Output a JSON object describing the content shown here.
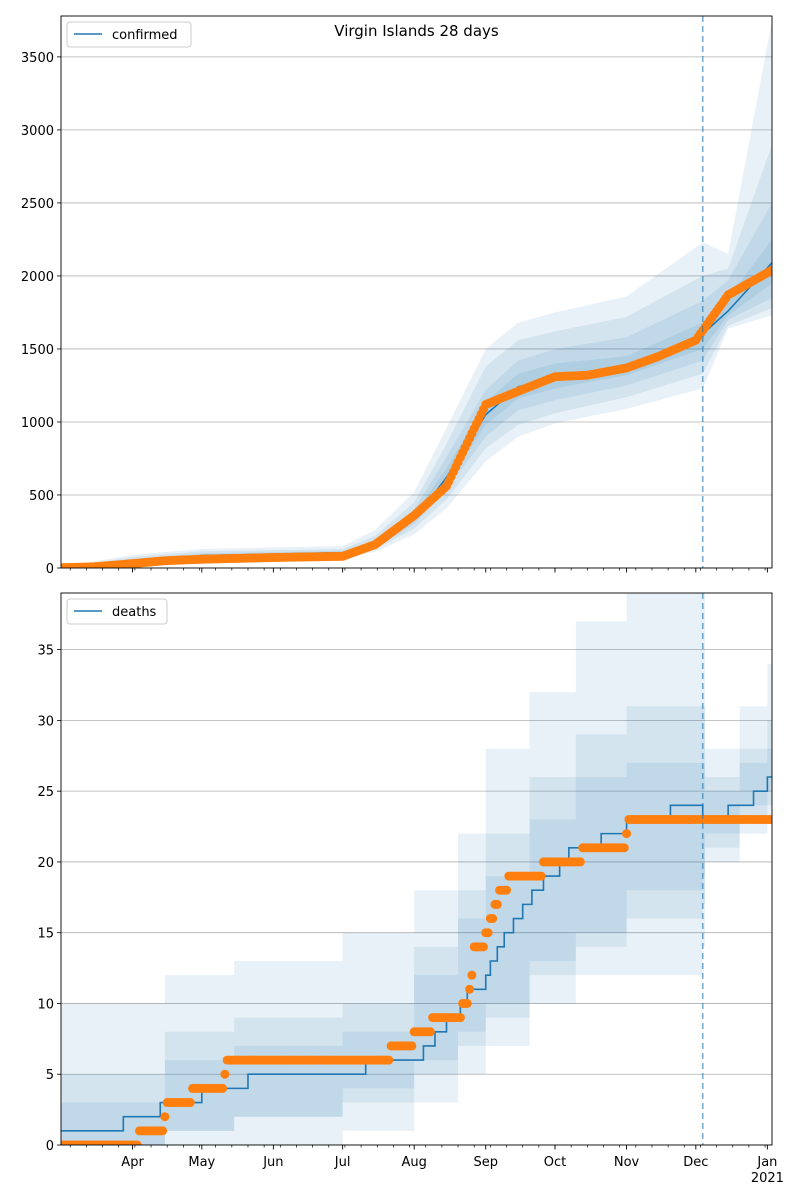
{
  "chart_data": [
    {
      "type": "line",
      "title": "Virgin Islands 28 days",
      "legend": {
        "entries": [
          "confirmed"
        ],
        "placement": "top-left"
      },
      "grid": "y",
      "ylim": [
        0,
        3780
      ],
      "yticks": [
        0,
        500,
        1000,
        1500,
        2000,
        2500,
        3000,
        3500
      ],
      "xlim": [
        "2020-03-01",
        "2021-01-03"
      ],
      "forecast_start": "2020-12-04",
      "colors": {
        "line": "#1f77b4",
        "observed": "#ff7f0e",
        "band": "#1f77b4"
      },
      "series": [
        {
          "name": "confirmed",
          "kind": "model",
          "points": [
            [
              "2020-03-01",
              2
            ],
            [
              "2020-03-15",
              8
            ],
            [
              "2020-04-01",
              45
            ],
            [
              "2020-04-15",
              65
            ],
            [
              "2020-05-01",
              85
            ],
            [
              "2020-06-01",
              95
            ],
            [
              "2020-07-01",
              105
            ],
            [
              "2020-07-15",
              150
            ],
            [
              "2020-08-01",
              330
            ],
            [
              "2020-08-15",
              620
            ],
            [
              "2020-09-01",
              1050
            ],
            [
              "2020-09-15",
              1240
            ],
            [
              "2020-10-01",
              1310
            ],
            [
              "2020-10-15",
              1340
            ],
            [
              "2020-11-01",
              1380
            ],
            [
              "2020-11-15",
              1450
            ],
            [
              "2020-12-01",
              1560
            ],
            [
              "2020-12-15",
              1760
            ],
            [
              "2021-01-03",
              2090
            ]
          ]
        },
        {
          "name": "",
          "kind": "observed",
          "points": [
            [
              "2020-03-01",
              2
            ],
            [
              "2020-03-15",
              8
            ],
            [
              "2020-04-01",
              30
            ],
            [
              "2020-04-15",
              50
            ],
            [
              "2020-05-01",
              60
            ],
            [
              "2020-06-01",
              72
            ],
            [
              "2020-07-01",
              80
            ],
            [
              "2020-07-15",
              160
            ],
            [
              "2020-08-01",
              360
            ],
            [
              "2020-08-15",
              560
            ],
            [
              "2020-09-01",
              1120
            ],
            [
              "2020-09-15",
              1210
            ],
            [
              "2020-10-01",
              1310
            ],
            [
              "2020-10-15",
              1320
            ],
            [
              "2020-11-01",
              1370
            ],
            [
              "2020-11-15",
              1450
            ],
            [
              "2020-12-01",
              1560
            ],
            [
              "2020-12-15",
              1870
            ],
            [
              "2021-01-03",
              2040
            ]
          ]
        }
      ],
      "bands": [
        {
          "points": [
            [
              "2020-03-01",
              0,
              5
            ],
            [
              "2020-04-01",
              25,
              90
            ],
            [
              "2020-05-01",
              60,
              130
            ],
            [
              "2020-07-01",
              75,
              150
            ],
            [
              "2020-07-15",
              110,
              260
            ],
            [
              "2020-08-01",
              230,
              520
            ],
            [
              "2020-08-15",
              410,
              960
            ],
            [
              "2020-09-01",
              730,
              1500
            ],
            [
              "2020-09-15",
              900,
              1680
            ],
            [
              "2020-10-01",
              990,
              1750
            ],
            [
              "2020-11-01",
              1090,
              1860
            ],
            [
              "2020-12-04",
              1230,
              2230
            ],
            [
              "2020-12-15",
              1640,
              2150
            ],
            [
              "2021-01-03",
              1730,
              3750
            ]
          ]
        },
        {
          "points": [
            [
              "2020-03-01",
              0,
              3
            ],
            [
              "2020-04-01",
              30,
              75
            ],
            [
              "2020-05-01",
              65,
              115
            ],
            [
              "2020-07-01",
              85,
              130
            ],
            [
              "2020-07-15",
              125,
              220
            ],
            [
              "2020-08-01",
              270,
              450
            ],
            [
              "2020-08-15",
              470,
              850
            ],
            [
              "2020-09-01",
              820,
              1380
            ],
            [
              "2020-09-15",
              980,
              1560
            ],
            [
              "2020-10-01",
              1060,
              1620
            ],
            [
              "2020-11-01",
              1170,
              1720
            ],
            [
              "2020-12-04",
              1330,
              2000
            ],
            [
              "2020-12-15",
              1660,
              2050
            ],
            [
              "2021-01-03",
              1780,
              2900
            ]
          ]
        },
        {
          "points": [
            [
              "2020-03-01",
              1,
              2
            ],
            [
              "2020-04-01",
              35,
              60
            ],
            [
              "2020-05-01",
              72,
              100
            ],
            [
              "2020-07-01",
              92,
              118
            ],
            [
              "2020-07-15",
              135,
              185
            ],
            [
              "2020-08-01",
              300,
              400
            ],
            [
              "2020-08-15",
              540,
              760
            ],
            [
              "2020-09-01",
              900,
              1220
            ],
            [
              "2020-09-15",
              1080,
              1420
            ],
            [
              "2020-10-01",
              1150,
              1500
            ],
            [
              "2020-11-01",
              1250,
              1580
            ],
            [
              "2020-12-04",
              1420,
              1830
            ],
            [
              "2020-12-15",
              1700,
              1970
            ],
            [
              "2021-01-03",
              1850,
              2500
            ]
          ]
        },
        {
          "points": [
            [
              "2020-03-01",
              1,
              2
            ],
            [
              "2020-04-01",
              40,
              52
            ],
            [
              "2020-05-01",
              78,
              92
            ],
            [
              "2020-07-01",
              98,
              112
            ],
            [
              "2020-07-15",
              140,
              165
            ],
            [
              "2020-08-01",
              320,
              370
            ],
            [
              "2020-08-15",
              580,
              680
            ],
            [
              "2020-09-01",
              980,
              1140
            ],
            [
              "2020-09-15",
              1160,
              1330
            ],
            [
              "2020-10-01",
              1230,
              1400
            ],
            [
              "2020-11-01",
              1320,
              1450
            ],
            [
              "2020-12-04",
              1500,
              1680
            ],
            [
              "2020-12-15",
              1730,
              1850
            ],
            [
              "2021-01-03",
              1950,
              2250
            ]
          ]
        }
      ]
    },
    {
      "type": "line",
      "title": "",
      "legend": {
        "entries": [
          "deaths"
        ],
        "placement": "top-left"
      },
      "grid": "y",
      "ylim": [
        0,
        39
      ],
      "yticks": [
        0,
        5,
        10,
        15,
        20,
        25,
        30,
        35
      ],
      "xlim": [
        "2020-03-01",
        "2021-01-03"
      ],
      "xticks": [
        "Apr",
        "May",
        "Jun",
        "Jul",
        "Aug",
        "Sep",
        "Oct",
        "Nov",
        "Dec",
        "Jan"
      ],
      "xtick_dates": [
        "2020-04-01",
        "2020-05-01",
        "2020-06-01",
        "2020-07-01",
        "2020-08-01",
        "2020-09-01",
        "2020-10-01",
        "2020-11-01",
        "2020-12-01",
        "2021-01-01"
      ],
      "year_label": "2021",
      "forecast_start": "2020-12-04",
      "colors": {
        "line": "#1f77b4",
        "observed": "#ff7f0e",
        "band": "#1f77b4"
      },
      "series": [
        {
          "name": "deaths",
          "kind": "model",
          "steps": [
            [
              "2020-03-01",
              1
            ],
            [
              "2020-03-28",
              2
            ],
            [
              "2020-04-13",
              3
            ],
            [
              "2020-05-01",
              4
            ],
            [
              "2020-05-21",
              5
            ],
            [
              "2020-07-11",
              6
            ],
            [
              "2020-08-05",
              7
            ],
            [
              "2020-08-10",
              8
            ],
            [
              "2020-08-15",
              9
            ],
            [
              "2020-08-21",
              10
            ],
            [
              "2020-08-24",
              11
            ],
            [
              "2020-09-01",
              12
            ],
            [
              "2020-09-03",
              13
            ],
            [
              "2020-09-06",
              14
            ],
            [
              "2020-09-09",
              15
            ],
            [
              "2020-09-13",
              16
            ],
            [
              "2020-09-17",
              17
            ],
            [
              "2020-09-21",
              18
            ],
            [
              "2020-09-26",
              19
            ],
            [
              "2020-10-03",
              20
            ],
            [
              "2020-10-07",
              21
            ],
            [
              "2020-10-21",
              22
            ],
            [
              "2020-11-01",
              23
            ],
            [
              "2020-11-20",
              24
            ],
            [
              "2020-12-04",
              23
            ],
            [
              "2020-12-15",
              24
            ],
            [
              "2020-12-26",
              25
            ],
            [
              "2021-01-01",
              26
            ]
          ]
        },
        {
          "name": "",
          "kind": "observed",
          "steps": [
            [
              "2020-03-01",
              0
            ],
            [
              "2020-04-04",
              1
            ],
            [
              "2020-04-15",
              2
            ],
            [
              "2020-04-16",
              3
            ],
            [
              "2020-04-27",
              4
            ],
            [
              "2020-05-11",
              5
            ],
            [
              "2020-05-12",
              6
            ],
            [
              "2020-07-22",
              7
            ],
            [
              "2020-08-01",
              8
            ],
            [
              "2020-08-09",
              9
            ],
            [
              "2020-08-22",
              10
            ],
            [
              "2020-08-25",
              11
            ],
            [
              "2020-08-26",
              12
            ],
            [
              "2020-08-27",
              14
            ],
            [
              "2020-09-01",
              15
            ],
            [
              "2020-09-03",
              16
            ],
            [
              "2020-09-05",
              17
            ],
            [
              "2020-09-07",
              18
            ],
            [
              "2020-09-11",
              19
            ],
            [
              "2020-09-26",
              20
            ],
            [
              "2020-10-13",
              21
            ],
            [
              "2020-11-01",
              22
            ],
            [
              "2020-11-02",
              23
            ]
          ],
          "end": "2021-01-02"
        }
      ],
      "bands": [
        {
          "steps": [
            [
              "2020-03-01",
              0,
              10
            ],
            [
              "2020-04-15",
              0,
              12
            ],
            [
              "2020-05-15",
              0,
              13
            ],
            [
              "2020-07-01",
              1,
              15
            ],
            [
              "2020-08-01",
              3,
              18
            ],
            [
              "2020-08-20",
              5,
              22
            ],
            [
              "2020-09-01",
              7,
              28
            ],
            [
              "2020-09-20",
              10,
              32
            ],
            [
              "2020-10-10",
              12,
              37
            ],
            [
              "2020-11-01",
              12,
              39
            ],
            [
              "2020-12-04",
              14,
              39
            ],
            [
              "2020-12-05",
              20,
              28
            ],
            [
              "2020-12-20",
              22,
              31
            ],
            [
              "2021-01-01",
              23,
              34
            ]
          ]
        },
        {
          "steps": [
            [
              "2020-03-01",
              0,
              5
            ],
            [
              "2020-04-15",
              1,
              8
            ],
            [
              "2020-05-15",
              2,
              9
            ],
            [
              "2020-07-01",
              3,
              10
            ],
            [
              "2020-08-01",
              5,
              14
            ],
            [
              "2020-08-20",
              7,
              18
            ],
            [
              "2020-09-01",
              9,
              22
            ],
            [
              "2020-09-20",
              12,
              26
            ],
            [
              "2020-10-10",
              14,
              29
            ],
            [
              "2020-11-01",
              16,
              31
            ],
            [
              "2020-12-04",
              17,
              31
            ],
            [
              "2020-12-05",
              21,
              26
            ],
            [
              "2020-12-20",
              23,
              28
            ],
            [
              "2021-01-01",
              24,
              30
            ]
          ]
        },
        {
          "steps": [
            [
              "2020-03-01",
              0,
              3
            ],
            [
              "2020-04-15",
              1,
              6
            ],
            [
              "2020-05-15",
              2,
              7
            ],
            [
              "2020-07-01",
              4,
              8
            ],
            [
              "2020-08-01",
              6,
              12
            ],
            [
              "2020-08-20",
              8,
              16
            ],
            [
              "2020-09-01",
              10,
              19
            ],
            [
              "2020-09-20",
              13,
              23
            ],
            [
              "2020-10-10",
              15,
              26
            ],
            [
              "2020-11-01",
              18,
              27
            ],
            [
              "2020-12-04",
              19,
              27
            ],
            [
              "2020-12-05",
              22,
              25
            ],
            [
              "2020-12-20",
              24,
              27
            ],
            [
              "2021-01-01",
              25,
              28
            ]
          ]
        }
      ]
    }
  ]
}
